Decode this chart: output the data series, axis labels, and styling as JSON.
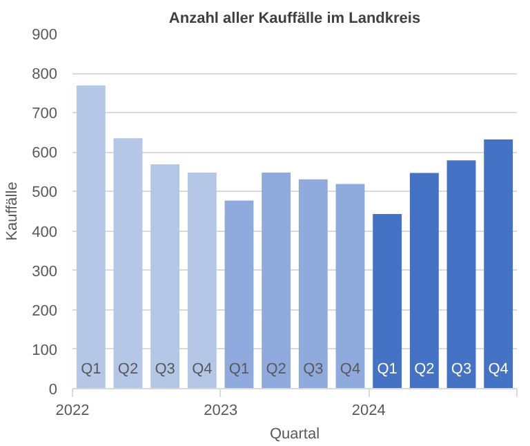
{
  "chart_data": {
    "type": "bar",
    "title": "Anzahl aller Kauffälle im Landkreis",
    "xlabel": "Quartal",
    "ylabel": "Kauffälle",
    "categories": [
      "Q1",
      "Q2",
      "Q3",
      "Q4",
      "Q1",
      "Q2",
      "Q3",
      "Q4",
      "Q1",
      "Q2",
      "Q3",
      "Q4"
    ],
    "values": [
      769,
      635,
      569,
      548,
      477,
      548,
      531,
      519,
      443,
      547,
      579,
      632
    ],
    "colors": [
      "#b4c7e7",
      "#b4c7e7",
      "#b4c7e7",
      "#b4c7e7",
      "#8faadc",
      "#8faadc",
      "#8faadc",
      "#8faadc",
      "#4472c4",
      "#4472c4",
      "#4472c4",
      "#4472c4"
    ],
    "annotations": [
      "2022",
      "2023",
      "2024"
    ],
    "ylim": [
      0,
      900
    ],
    "yticks": [
      0,
      100,
      200,
      300,
      400,
      500,
      600,
      700,
      800,
      900
    ],
    "grid": "y"
  }
}
